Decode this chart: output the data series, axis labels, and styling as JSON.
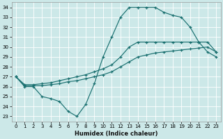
{
  "xlabel": "Humidex (Indice chaleur)",
  "bg_color": "#cce8e8",
  "line_color": "#1a7070",
  "grid_color": "#ffffff",
  "xlim": [
    -0.5,
    23.5
  ],
  "ylim": [
    22.5,
    34.5
  ],
  "xticks": [
    0,
    1,
    2,
    3,
    4,
    5,
    6,
    7,
    8,
    9,
    10,
    11,
    12,
    13,
    14,
    15,
    16,
    17,
    18,
    19,
    20,
    21,
    22,
    23
  ],
  "yticks": [
    23,
    24,
    25,
    26,
    27,
    28,
    29,
    30,
    31,
    32,
    33,
    34
  ],
  "line1_x": [
    0,
    1,
    2,
    3,
    4,
    5,
    6,
    7,
    8,
    9,
    10,
    11,
    12,
    13,
    14,
    15,
    16,
    17,
    18,
    19,
    20,
    21,
    22,
    23
  ],
  "line1_y": [
    27,
    26,
    26,
    25,
    24.8,
    24.5,
    23.5,
    23,
    24.2,
    26.3,
    29.0,
    31.0,
    33.0,
    34.0,
    34.0,
    34.0,
    34.0,
    33.5,
    33.2,
    33.0,
    32.0,
    30.5,
    29.5,
    29.0
  ],
  "line2_x": [
    0,
    1,
    2,
    3,
    4,
    5,
    6,
    7,
    8,
    9,
    10,
    11,
    12,
    13,
    14,
    15,
    16,
    17,
    18,
    19,
    20,
    21,
    22,
    23
  ],
  "line2_y": [
    27.0,
    26.2,
    26.2,
    26.3,
    26.4,
    26.6,
    26.8,
    27.0,
    27.2,
    27.5,
    27.8,
    28.2,
    29.0,
    30.0,
    30.5,
    30.5,
    30.5,
    30.5,
    30.5,
    30.5,
    30.5,
    30.5,
    30.5,
    29.5
  ],
  "line3_x": [
    0,
    1,
    2,
    3,
    4,
    5,
    6,
    7,
    8,
    9,
    10,
    11,
    12,
    13,
    14,
    15,
    16,
    17,
    18,
    19,
    20,
    21,
    22,
    23
  ],
  "line3_y": [
    27.0,
    26.1,
    26.1,
    26.1,
    26.2,
    26.3,
    26.5,
    26.6,
    26.8,
    27.0,
    27.2,
    27.5,
    28.0,
    28.5,
    29.0,
    29.2,
    29.4,
    29.5,
    29.6,
    29.7,
    29.8,
    29.9,
    30.0,
    29.5
  ]
}
